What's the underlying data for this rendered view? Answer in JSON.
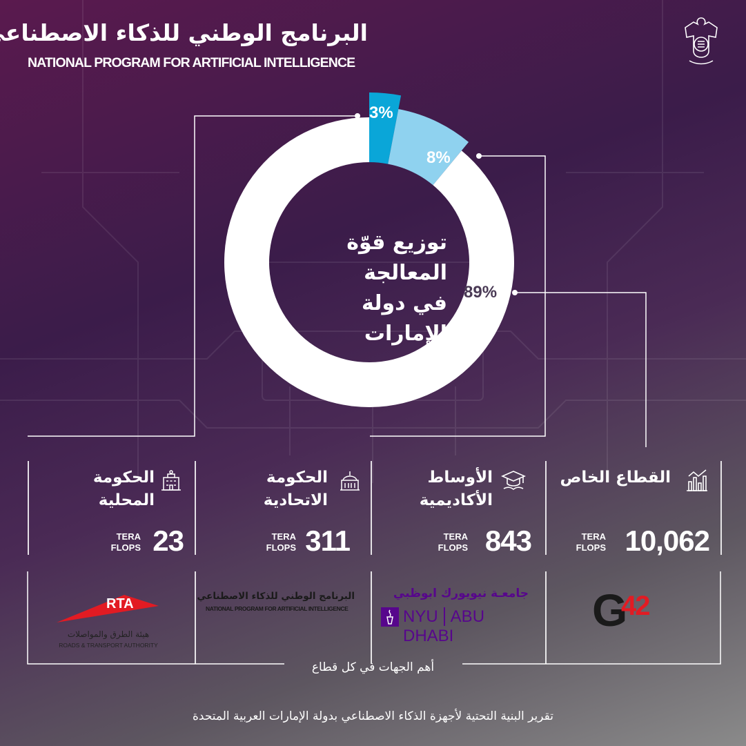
{
  "header": {
    "title_ar": "البرنامج الوطني للذكاء الاصطناعي",
    "title_en": "NATIONAL PROGRAM FOR ARTIFICIAL INTELLIGENCE"
  },
  "chart_data": {
    "type": "pie",
    "title": "توزيع قوّة المعالجة في دولة الإمارات",
    "title_lines": [
      "توزيع قوّة",
      "المعالجة",
      "في دولة الإمارات"
    ],
    "slices": [
      {
        "label": "3%",
        "value": 3,
        "color": "#0aa6d8"
      },
      {
        "label": "8%",
        "value": 8,
        "color": "#8fd2ef"
      },
      {
        "label": "89%",
        "value": 89,
        "color": "#ffffff"
      }
    ]
  },
  "sectors": [
    {
      "title_lines": [
        "القطاع الخاص"
      ],
      "value": "10,062",
      "unit_lines": [
        "TERA",
        "FLOPS"
      ]
    },
    {
      "title_lines": [
        "الأوساط",
        "الأكاديمية"
      ],
      "value": "843",
      "unit_lines": [
        "TERA",
        "FLOPS"
      ]
    },
    {
      "title_lines": [
        "الحكومة",
        "الاتحادية"
      ],
      "value": "311",
      "unit_lines": [
        "TERA",
        "FLOPS"
      ]
    },
    {
      "title_lines": [
        "الحكومة",
        "المحلية"
      ],
      "value": "23",
      "unit_lines": [
        "TERA",
        "FLOPS"
      ]
    }
  ],
  "logos": {
    "g42": {
      "text_g": "G",
      "text_num": "42"
    },
    "nyu": {
      "ar": "جامعـة نيويورك ابوظبي",
      "en_left": "NYU",
      "en_right": "ABU DHABI"
    },
    "napi": {
      "ar": "البرنامج الوطني للذكاء الاصطناعي",
      "en": "NATIONAL PROGRAM FOR ARTIFICIAL INTELLIGENCE"
    },
    "rta": {
      "mark": "RTA",
      "ar": "هيئة الطرق والمواصلات",
      "en": "ROADS & TRANSPORT AUTHORITY"
    }
  },
  "entities_label": "أهم الجهات في كل قطاع",
  "footer": "تقرير البنية التحتية لأجهزة الذكاء الاصطناعي بدولة الإمارات العربية المتحدة",
  "colors": {
    "accent": "#0aa6d8",
    "light_accent": "#8fd2ef",
    "g42_red": "#e21b23",
    "nyu_purple": "#57068c",
    "rta_red": "#e21b23"
  }
}
